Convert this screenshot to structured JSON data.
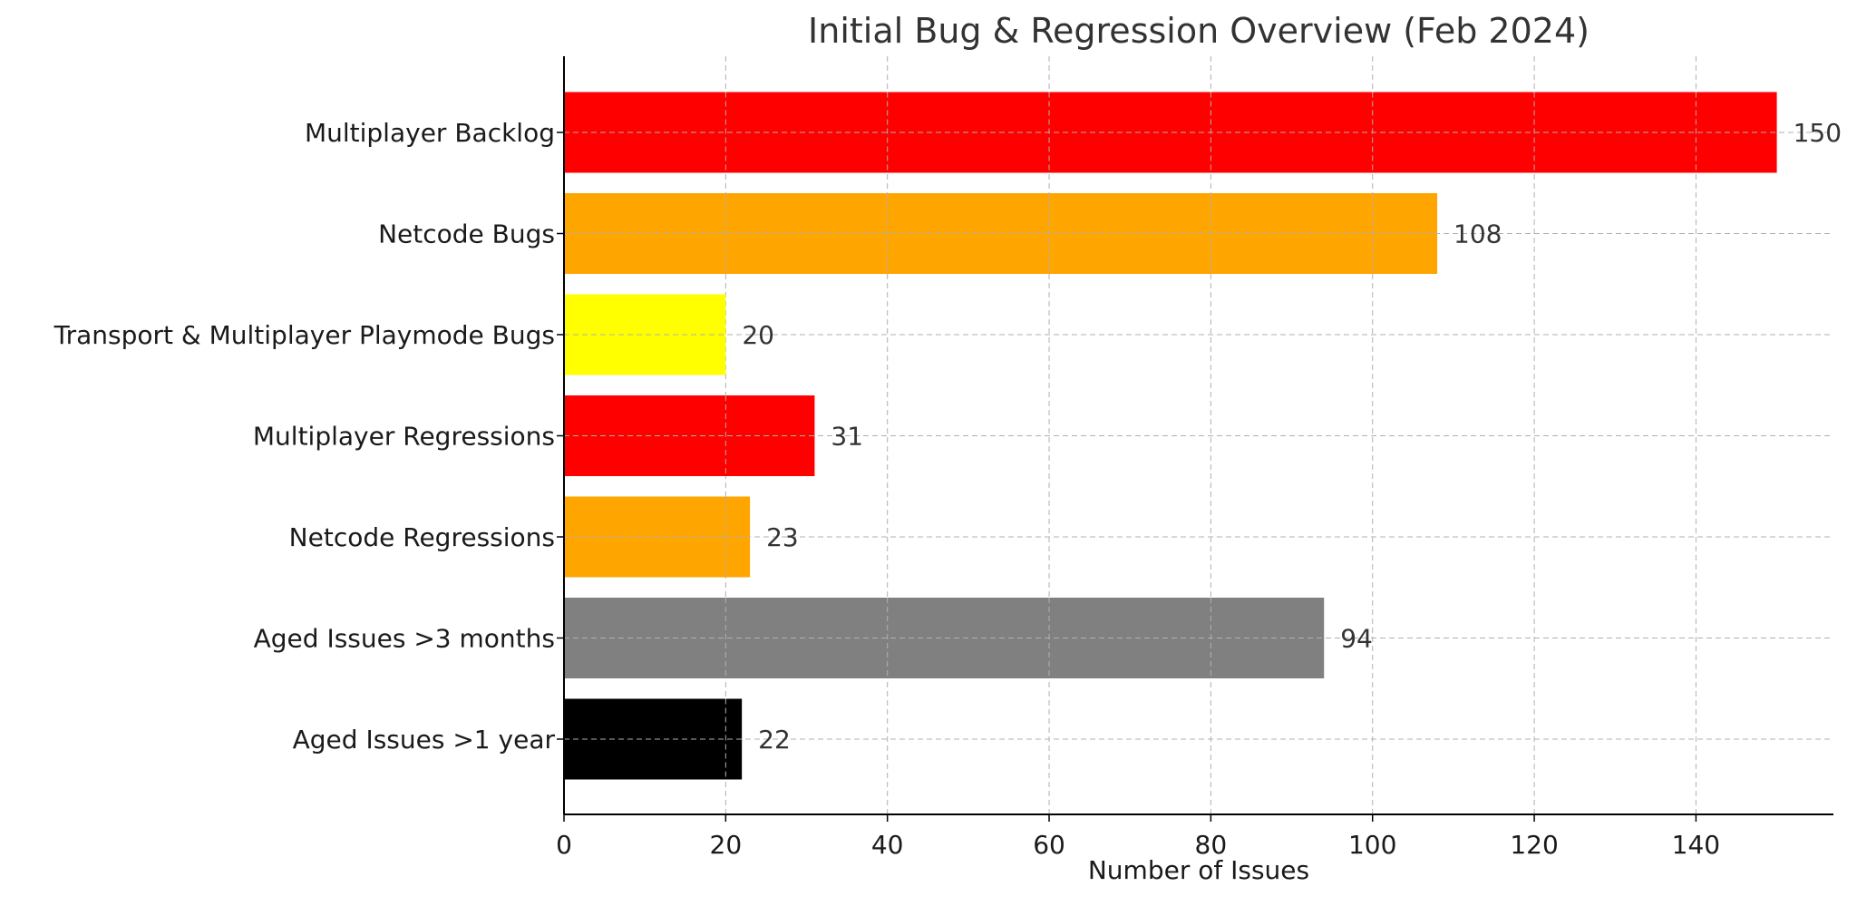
{
  "chart_data": {
    "type": "bar",
    "orientation": "horizontal",
    "title": "Initial Bug & Regression Overview (Feb 2024)",
    "xlabel": "Number of Issues",
    "ylabel": "",
    "xlim": [
      0,
      157
    ],
    "xticks": [
      0,
      20,
      40,
      60,
      80,
      100,
      120,
      140
    ],
    "grid": true,
    "categories": [
      "Multiplayer Backlog",
      "Netcode Bugs",
      "Transport & Multiplayer Playmode Bugs",
      "Multiplayer Regressions",
      "Netcode Regressions",
      "Aged Issues >3 months",
      "Aged Issues >1 year"
    ],
    "values": [
      150,
      108,
      20,
      31,
      23,
      94,
      22
    ],
    "colors": [
      "#ff0000",
      "#ffa500",
      "#ffff00",
      "#ff0000",
      "#ffa500",
      "#808080",
      "#000000"
    ]
  }
}
